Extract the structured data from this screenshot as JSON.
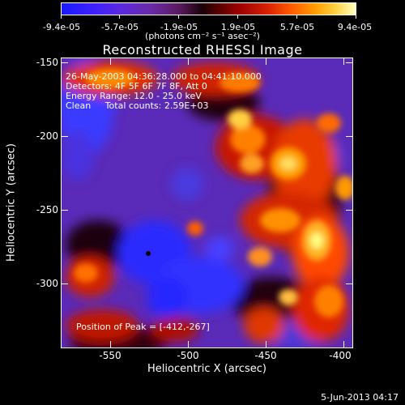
{
  "colorbar": {
    "ticks": [
      "-9.4e-05",
      "-5.7e-05",
      "-1.9e-05",
      "1.9e-05",
      "5.7e-05",
      "9.4e-05"
    ],
    "units": "(photons cm⁻² s⁻¹ asec⁻²)"
  },
  "title": "Reconstructed RHESSI Image",
  "info": {
    "time_range": "26-May-2003 04:36:28.000 to 04:41:10.000",
    "detectors": "Detectors: 4F 5F 6F 7F 8F, Att 0",
    "energy": "Energy Range: 12.0 - 25.0 keV",
    "algorithm": "Clean     Total counts: 2.59E+03",
    "peak": "Position of Peak = [-412,-267]"
  },
  "axes": {
    "x_label": "Heliocentric X (arcsec)",
    "y_label": "Heliocentric Y (arcsec)",
    "x_ticks": [
      "-550",
      "-500",
      "-450",
      "-400"
    ],
    "y_ticks": [
      "-150",
      "-200",
      "-250",
      "-300"
    ]
  },
  "date_stamp": "5-Jun-2013 04:17",
  "colors": {
    "background": "#000000",
    "negative": "#3a20ff",
    "neutral": "#5a28c0",
    "positive": "#ff6000",
    "peak": "#ffffc0"
  }
}
